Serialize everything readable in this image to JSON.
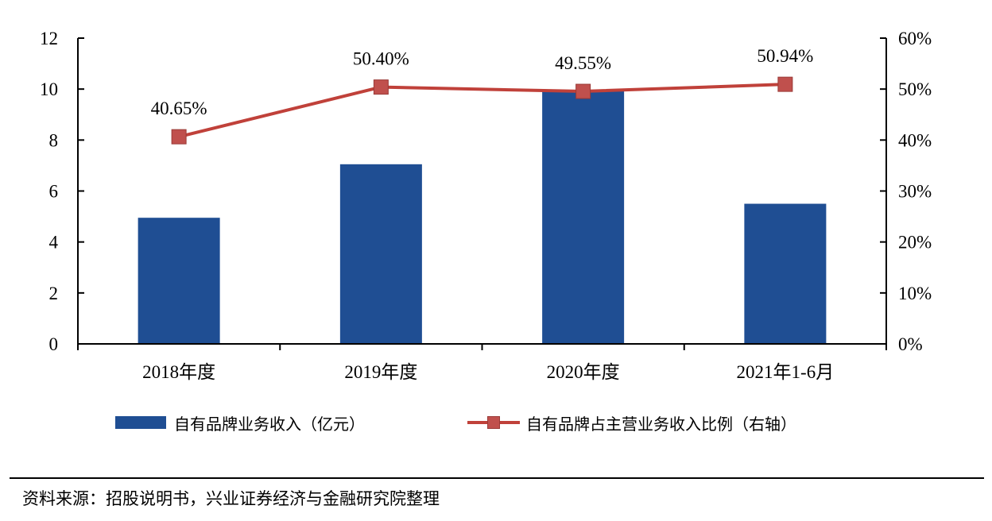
{
  "chart_data": {
    "type": "bar",
    "categories": [
      "2018年度",
      "2019年度",
      "2020年度",
      "2021年1-6月"
    ],
    "series": [
      {
        "name": "自有品牌业务收入（亿元）",
        "type": "bar",
        "axis": "left",
        "values": [
          4.95,
          7.05,
          9.95,
          5.5
        ]
      },
      {
        "name": "自有品牌占主营业务收入比例（右轴）",
        "type": "line",
        "axis": "right",
        "values": [
          40.65,
          50.4,
          49.55,
          50.94
        ],
        "labels": [
          "40.65%",
          "50.40%",
          "49.55%",
          "50.94%"
        ]
      }
    ],
    "y_left": {
      "ylim": [
        0,
        12
      ],
      "ticks": [
        "0",
        "2",
        "4",
        "6",
        "8",
        "10",
        "12"
      ]
    },
    "y_right": {
      "ylim": [
        0,
        60
      ],
      "ticks": [
        "0%",
        "10%",
        "20%",
        "30%",
        "40%",
        "50%",
        "60%"
      ]
    },
    "legend_position": "bottom",
    "grid": false
  },
  "source_note": "资料来源：招股说明书，兴业证券经济与金融研究院整理",
  "colors": {
    "bar": "#1f4e93",
    "line": "#c0413a",
    "marker": "#c0504d",
    "axis": "#000000"
  }
}
